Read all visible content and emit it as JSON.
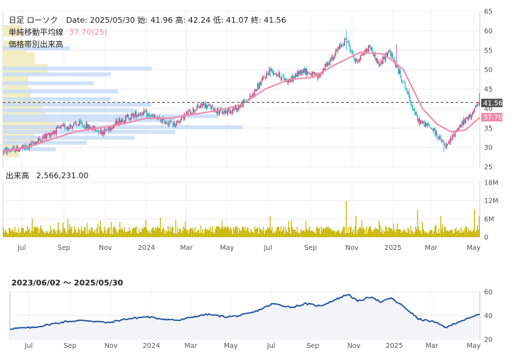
{
  "chart_data": [
    {
      "type": "candlestick",
      "header": {
        "title": "日足 ローソク",
        "ohlc_text": "Date: 2025/05/30 始: 41.96 高: 42.24 低: 41.07 終: 41.56",
        "ma_label": "単純移動平均線",
        "ma_value": "37.70(25)",
        "vp_label": "価格帯別出来高"
      },
      "last_price_label": "41.56",
      "ma_last_label": "37.70",
      "ylim": [
        25,
        65
      ],
      "yticks": [
        "25",
        "30",
        "35",
        "40",
        "45",
        "50",
        "55",
        "60",
        "65"
      ],
      "ref_line": 41.56,
      "colors": {
        "up": "#e0306a",
        "down": "#22b8c8",
        "ma": "#f08aa8",
        "vp": "#c8dcf8",
        "vp_hi": "#f3edc4"
      },
      "price_path": [
        {
          "x": 0,
          "y": 29
        },
        {
          "x": 0.05,
          "y": 30
        },
        {
          "x": 0.09,
          "y": 33
        },
        {
          "x": 0.12,
          "y": 35
        },
        {
          "x": 0.16,
          "y": 36
        },
        {
          "x": 0.21,
          "y": 34
        },
        {
          "x": 0.245,
          "y": 37
        },
        {
          "x": 0.29,
          "y": 39
        },
        {
          "x": 0.33,
          "y": 37
        },
        {
          "x": 0.36,
          "y": 36
        },
        {
          "x": 0.39,
          "y": 39
        },
        {
          "x": 0.42,
          "y": 41
        },
        {
          "x": 0.46,
          "y": 39
        },
        {
          "x": 0.49,
          "y": 40
        },
        {
          "x": 0.52,
          "y": 43
        },
        {
          "x": 0.56,
          "y": 50
        },
        {
          "x": 0.6,
          "y": 47
        },
        {
          "x": 0.63,
          "y": 50
        },
        {
          "x": 0.66,
          "y": 48
        },
        {
          "x": 0.69,
          "y": 53
        },
        {
          "x": 0.72,
          "y": 58
        },
        {
          "x": 0.74,
          "y": 52
        },
        {
          "x": 0.77,
          "y": 56
        },
        {
          "x": 0.79,
          "y": 51
        },
        {
          "x": 0.81,
          "y": 55
        },
        {
          "x": 0.84,
          "y": 47
        },
        {
          "x": 0.87,
          "y": 37
        },
        {
          "x": 0.9,
          "y": 35
        },
        {
          "x": 0.93,
          "y": 30
        },
        {
          "x": 0.955,
          "y": 35
        },
        {
          "x": 0.98,
          "y": 38
        },
        {
          "x": 1,
          "y": 41.5
        }
      ],
      "ma_path": [
        {
          "x": 0,
          "y": 29
        },
        {
          "x": 0.05,
          "y": 30
        },
        {
          "x": 0.1,
          "y": 32
        },
        {
          "x": 0.15,
          "y": 34
        },
        {
          "x": 0.2,
          "y": 35
        },
        {
          "x": 0.25,
          "y": 36
        },
        {
          "x": 0.3,
          "y": 37.5
        },
        {
          "x": 0.35,
          "y": 37.5
        },
        {
          "x": 0.4,
          "y": 38.5
        },
        {
          "x": 0.45,
          "y": 39.5
        },
        {
          "x": 0.5,
          "y": 41
        },
        {
          "x": 0.55,
          "y": 45
        },
        {
          "x": 0.6,
          "y": 47.5
        },
        {
          "x": 0.65,
          "y": 48
        },
        {
          "x": 0.7,
          "y": 51.5
        },
        {
          "x": 0.75,
          "y": 54.5
        },
        {
          "x": 0.8,
          "y": 54
        },
        {
          "x": 0.84,
          "y": 50
        },
        {
          "x": 0.88,
          "y": 40
        },
        {
          "x": 0.91,
          "y": 36
        },
        {
          "x": 0.94,
          "y": 34
        },
        {
          "x": 0.97,
          "y": 34.5
        },
        {
          "x": 1,
          "y": 37.7
        }
      ],
      "spikes": [
        {
          "x": 0.56,
          "high": 50.8,
          "low": 48
        },
        {
          "x": 0.72,
          "high": 60.2,
          "low": 55
        },
        {
          "x": 0.825,
          "high": 56.5,
          "low": 52
        },
        {
          "x": 0.925,
          "high": 31,
          "low": 28.8
        },
        {
          "x": 1,
          "high": 44,
          "low": 40.5
        }
      ],
      "volume_profile": [
        {
          "price": 55.5,
          "volume": 0.28
        },
        {
          "price": 50.3,
          "volume": 0.62
        },
        {
          "price": 48.8,
          "volume": 0.45
        },
        {
          "price": 46.5,
          "volume": 0.38
        },
        {
          "price": 44.4,
          "volume": 0.48
        },
        {
          "price": 42.4,
          "volume": 0.45
        },
        {
          "price": 41.0,
          "volume": 0.62
        },
        {
          "price": 39.5,
          "volume": 0.55
        },
        {
          "price": 38.0,
          "volume": 0.9
        },
        {
          "price": 37.0,
          "volume": 0.72
        },
        {
          "price": 35.2,
          "volume": 1.0
        },
        {
          "price": 34.0,
          "volume": 0.72
        },
        {
          "price": 32.5,
          "volume": 0.55
        },
        {
          "price": 31.2,
          "volume": 0.35
        },
        {
          "price": 29.5,
          "volume": 0.22
        }
      ],
      "volume_profile_hi": [
        {
          "price": 60,
          "volume": 0.18
        },
        {
          "price": 56,
          "volume": 0.22
        },
        {
          "price": 53,
          "volume": 0.3
        },
        {
          "price": 50,
          "volume": 0.42
        },
        {
          "price": 47,
          "volume": 0.24
        },
        {
          "price": 44,
          "volume": 0.26
        },
        {
          "price": 41,
          "volume": 0.38
        },
        {
          "price": 38,
          "volume": 0.4
        },
        {
          "price": 35,
          "volume": 0.5
        },
        {
          "price": 32,
          "volume": 0.3
        },
        {
          "price": 29,
          "volume": 0.15
        }
      ]
    },
    {
      "type": "bar",
      "label": "出来高",
      "value_text": "2,566,231.00",
      "ylim": [
        0,
        18000000
      ],
      "yticks": [
        "0",
        "6M",
        "12M",
        "18M"
      ],
      "bar_color": "#c8b400",
      "base_level": 2600000,
      "spikes": [
        {
          "x": 0.06,
          "value": 6000000
        },
        {
          "x": 0.135,
          "value": 6000000
        },
        {
          "x": 0.245,
          "value": 5000000
        },
        {
          "x": 0.33,
          "value": 6500000
        },
        {
          "x": 0.46,
          "value": 5500000
        },
        {
          "x": 0.56,
          "value": 7000000
        },
        {
          "x": 0.72,
          "value": 12000000
        },
        {
          "x": 0.74,
          "value": 7000000
        },
        {
          "x": 0.79,
          "value": 5500000
        },
        {
          "x": 0.87,
          "value": 9000000
        },
        {
          "x": 0.88,
          "value": 5000000
        },
        {
          "x": 0.92,
          "value": 7000000
        },
        {
          "x": 0.99,
          "value": 9000000
        },
        {
          "x": 1,
          "value": 7000000
        }
      ]
    },
    {
      "type": "line",
      "range_label": "2023/06/02 〜 2025/05/30",
      "ylim": [
        20,
        60
      ],
      "yticks": [
        "20",
        "40",
        "60"
      ],
      "line_color": "#1f4e9a"
    }
  ],
  "xaxis": {
    "ticks": [
      {
        "label": "Jul",
        "pos": 0.04
      },
      {
        "label": "Sep",
        "pos": 0.128
      },
      {
        "label": "Nov",
        "pos": 0.215
      },
      {
        "label": "2024",
        "pos": 0.301
      },
      {
        "label": "Mar",
        "pos": 0.385
      },
      {
        "label": "May",
        "pos": 0.47
      },
      {
        "label": "Jul",
        "pos": 0.556
      },
      {
        "label": "Sep",
        "pos": 0.645
      },
      {
        "label": "Nov",
        "pos": 0.732
      },
      {
        "label": "2025",
        "pos": 0.818
      },
      {
        "label": "Mar",
        "pos": 0.898
      },
      {
        "label": "May",
        "pos": 0.987
      }
    ]
  }
}
